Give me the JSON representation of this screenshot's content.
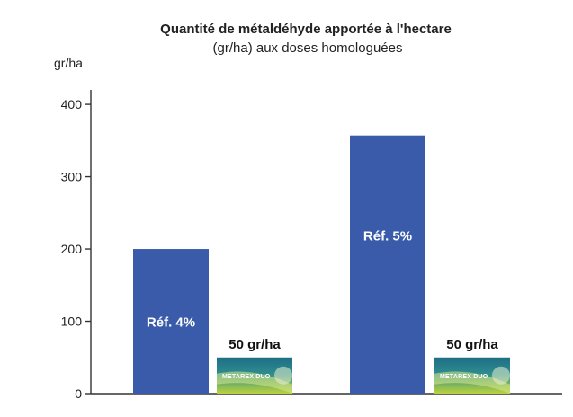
{
  "chart_data": {
    "type": "bar",
    "title": "Quantité de métaldéhyde apportée à l'hectare",
    "subtitle": "(gr/ha) aux doses homologuées",
    "ylabel": "gr/ha",
    "ylim": [
      0,
      420
    ],
    "yticks": [
      0,
      100,
      200,
      300,
      400
    ],
    "grid": false,
    "bars": [
      {
        "label": "Réf. 4%",
        "value": 200,
        "color": "#3A5BAA"
      },
      {
        "label": "Réf. 5%",
        "value": 357,
        "color": "#3A5BAA"
      }
    ],
    "products": [
      {
        "label": "50 gr/ha",
        "value": 50,
        "logo_text": "METAREX DUO"
      },
      {
        "label": "50 gr/ha",
        "value": 50,
        "logo_text": "METAREX DUO"
      }
    ]
  },
  "colors": {
    "bar": "#3A5BAA",
    "axis": "#333333",
    "logo_top": "#1E6E86",
    "logo_bottom": "#BCD33C"
  }
}
